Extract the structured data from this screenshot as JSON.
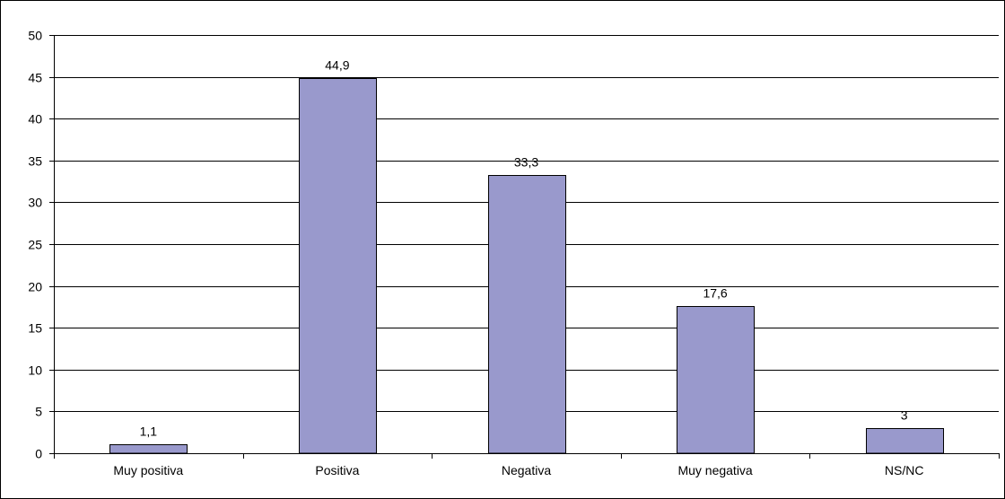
{
  "chart_data": {
    "type": "bar",
    "categories": [
      "Muy positiva",
      "Positiva",
      "Negativa",
      "Muy negativa",
      "NS/NC"
    ],
    "values": [
      1.1,
      44.9,
      33.3,
      17.6,
      3
    ],
    "value_labels": [
      "1,1",
      "44,9",
      "33,3",
      "17,6",
      "3"
    ],
    "yticks": [
      0,
      5,
      10,
      15,
      20,
      25,
      30,
      35,
      40,
      45,
      50
    ],
    "ylim": [
      0,
      50
    ],
    "grid": true,
    "legend": "none",
    "title": "",
    "xlabel": "",
    "ylabel": "",
    "bar_color": "#9999cc",
    "bar_stroke": "#000000"
  }
}
